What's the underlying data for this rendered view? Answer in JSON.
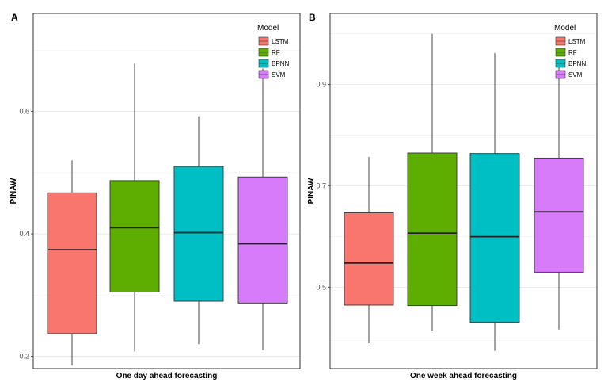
{
  "chart_data": [
    {
      "type": "boxplot",
      "panel_label": "A",
      "xlabel": "One day ahead forecasting",
      "ylabel": "PINAW",
      "ylim": [
        0.18,
        0.76
      ],
      "yticks": [
        0.2,
        0.4,
        0.6
      ],
      "ytick_labels": [
        "0.2",
        "0.4",
        "0.6"
      ],
      "legend": {
        "title": "Model",
        "position": "top-right"
      },
      "series": [
        {
          "name": "LSTM",
          "color": "#F8766D",
          "min": 0.185,
          "q1": 0.237,
          "median": 0.374,
          "q3": 0.467,
          "max": 0.52
        },
        {
          "name": "RF",
          "color": "#5DAE00",
          "min": 0.208,
          "q1": 0.305,
          "median": 0.41,
          "q3": 0.487,
          "max": 0.678
        },
        {
          "name": "BPNN",
          "color": "#00BFC4",
          "min": 0.22,
          "q1": 0.29,
          "median": 0.402,
          "q3": 0.51,
          "max": 0.592
        },
        {
          "name": "SVM",
          "color": "#D77BFA",
          "min": 0.21,
          "q1": 0.287,
          "median": 0.384,
          "q3": 0.493,
          "max": 0.67
        }
      ]
    },
    {
      "type": "boxplot",
      "panel_label": "B",
      "xlabel": "One week ahead forecasting",
      "ylabel": "PINAW",
      "ylim": [
        0.34,
        1.04
      ],
      "yticks": [
        0.5,
        0.7,
        0.9
      ],
      "ytick_labels": [
        "0.5",
        "0.7",
        "0.9"
      ],
      "legend": {
        "title": "Model",
        "position": "top-right"
      },
      "series": [
        {
          "name": "LSTM",
          "color": "#F8766D",
          "min": 0.39,
          "q1": 0.465,
          "median": 0.548,
          "q3": 0.647,
          "max": 0.757
        },
        {
          "name": "RF",
          "color": "#5DAE00",
          "min": 0.415,
          "q1": 0.464,
          "median": 0.607,
          "q3": 0.765,
          "max": 1.0
        },
        {
          "name": "BPNN",
          "color": "#00BFC4",
          "min": 0.375,
          "q1": 0.431,
          "median": 0.6,
          "q3": 0.764,
          "max": 0.962
        },
        {
          "name": "SVM",
          "color": "#D77BFA",
          "min": 0.417,
          "q1": 0.53,
          "median": 0.649,
          "q3": 0.755,
          "max": 0.95
        }
      ]
    }
  ]
}
